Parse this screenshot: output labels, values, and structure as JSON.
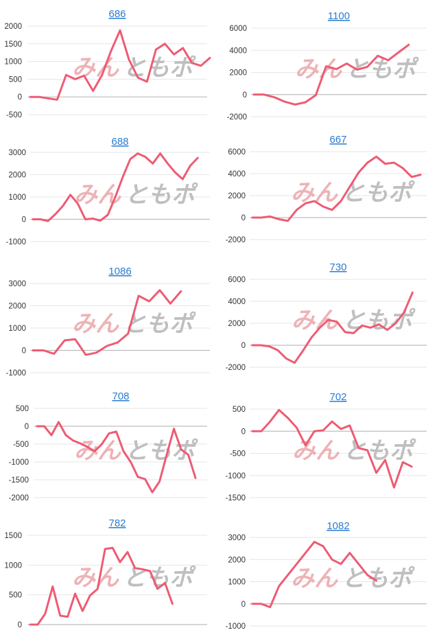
{
  "watermark": {
    "part1": "みん",
    "part2": "ともポ"
  },
  "colors": {
    "line": "#ee5b73",
    "title": "#2a7bd0",
    "grid": "#e6e6e6",
    "axis_text": "#333333"
  },
  "chart_data": [
    {
      "type": "line",
      "title": "686",
      "yticks": [
        2000,
        1500,
        1000,
        500,
        0,
        -500
      ],
      "ylim": [
        -500,
        2000
      ],
      "values": [
        0,
        0,
        -40,
        -80,
        620,
        500,
        600,
        170,
        620,
        1300,
        1880,
        1050,
        540,
        430,
        1340,
        1500,
        1200,
        1380,
        960,
        880,
        1100
      ]
    },
    {
      "type": "line",
      "title": "1100",
      "yticks": [
        6000,
        4000,
        2000,
        0,
        -2000
      ],
      "ylim": [
        -2000,
        6000
      ],
      "values": [
        0,
        0,
        -250,
        -650,
        -900,
        -700,
        -50,
        2550,
        2300,
        2800,
        2250,
        2500,
        3500,
        3100,
        3800,
        4500
      ]
    },
    {
      "type": "line",
      "title": "688",
      "yticks": [
        3000,
        2000,
        1000,
        0,
        -1000
      ],
      "ylim": [
        -1000,
        3000
      ],
      "values": [
        0,
        0,
        -80,
        230,
        600,
        1100,
        700,
        0,
        30,
        -60,
        200,
        1000,
        1900,
        2700,
        2950,
        2800,
        2500,
        2950,
        2500,
        2100,
        1800,
        2400,
        2750
      ]
    },
    {
      "type": "line",
      "title": "667",
      "yticks": [
        6000,
        4000,
        2000,
        0,
        -2000
      ],
      "ylim": [
        -2000,
        6000
      ],
      "values": [
        0,
        0,
        100,
        -150,
        -300,
        700,
        1300,
        1500,
        1000,
        700,
        1500,
        2800,
        4100,
        5000,
        5550,
        4900,
        5000,
        4500,
        3700,
        3900
      ]
    },
    {
      "type": "line",
      "title": "1086",
      "yticks": [
        3000,
        2000,
        1000,
        0,
        -1000
      ],
      "ylim": [
        -1000,
        3000
      ],
      "values": [
        0,
        0,
        -150,
        450,
        500,
        -200,
        -100,
        200,
        350,
        750,
        2450,
        2200,
        2700,
        2100,
        2650
      ]
    },
    {
      "type": "line",
      "title": "730",
      "yticks": [
        6000,
        4000,
        2000,
        0,
        -2000
      ],
      "ylim": [
        -2000,
        6000
      ],
      "values": [
        0,
        0,
        -100,
        -450,
        -1200,
        -1600,
        -500,
        700,
        1600,
        2300,
        2150,
        1200,
        1100,
        1800,
        1600,
        1900,
        1400,
        2000,
        3000,
        4800
      ]
    },
    {
      "type": "line",
      "title": "708",
      "yticks": [
        500,
        0,
        -500,
        -1000,
        -1500,
        -2000
      ],
      "ylim": [
        -2000,
        500
      ],
      "values": [
        0,
        0,
        -250,
        120,
        -250,
        -400,
        -480,
        -580,
        -700,
        -500,
        -200,
        -150,
        -700,
        -1000,
        -1420,
        -1480,
        -1850,
        -1550,
        -800,
        -70,
        -650,
        -800,
        -1450
      ]
    },
    {
      "type": "line",
      "title": "702",
      "yticks": [
        500,
        0,
        -500,
        -1000,
        -1500
      ],
      "ylim": [
        -1500,
        500
      ],
      "values": [
        0,
        0,
        220,
        480,
        300,
        80,
        -320,
        0,
        20,
        220,
        50,
        130,
        -380,
        -430,
        -940,
        -650,
        -1270,
        -700,
        -800
      ]
    },
    {
      "type": "line",
      "title": "782",
      "yticks": [
        1500,
        1000,
        500,
        0
      ],
      "ylim": [
        0,
        1500
      ],
      "values": [
        0,
        0,
        180,
        640,
        150,
        130,
        520,
        230,
        490,
        600,
        1270,
        1290,
        1050,
        1220,
        950,
        930,
        900,
        600,
        700,
        350
      ]
    },
    {
      "type": "line",
      "title": "1082",
      "yticks": [
        3000,
        2000,
        1000,
        0,
        -1000
      ],
      "ylim": [
        -1000,
        3000
      ],
      "values": [
        0,
        0,
        -150,
        800,
        1300,
        1800,
        2300,
        2800,
        2600,
        2000,
        1800,
        2300,
        1800,
        1300,
        1050
      ]
    }
  ]
}
